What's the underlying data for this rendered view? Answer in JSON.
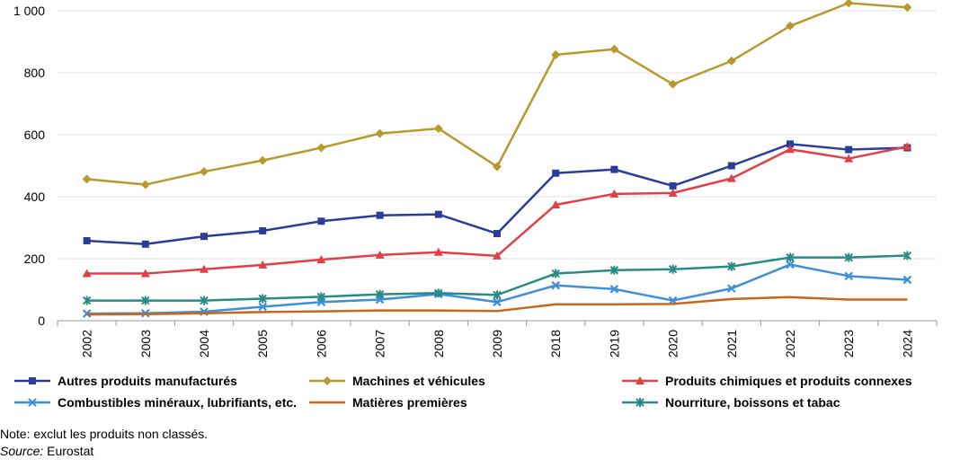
{
  "chart_data": {
    "type": "line",
    "categories": [
      "2002",
      "2003",
      "2004",
      "2005",
      "2006",
      "2007",
      "2008",
      "2009",
      "2018",
      "2019",
      "2020",
      "2021",
      "2022",
      "2023",
      "2024"
    ],
    "ylim": [
      0,
      1000
    ],
    "yticks": [
      0,
      200,
      400,
      600,
      800,
      1000
    ],
    "ytick_labels": [
      "0",
      "200",
      "400",
      "600",
      "800",
      "1 000"
    ],
    "grid": true,
    "legend_position": "bottom",
    "series": [
      {
        "name": "Autres produits manufacturés",
        "color": "#2B3D98",
        "marker": "square",
        "values": [
          258,
          247,
          272,
          290,
          321,
          340,
          343,
          281,
          476,
          488,
          435,
          500,
          570,
          552,
          558
        ]
      },
      {
        "name": "Machines et véhicules",
        "color": "#B8992B",
        "marker": "diamond",
        "values": [
          457,
          439,
          481,
          517,
          558,
          604,
          620,
          497,
          858,
          876,
          763,
          838,
          951,
          1025,
          1011
        ]
      },
      {
        "name": "Produits chimiques et produits connexes",
        "color": "#E04046",
        "marker": "triangle",
        "values": [
          152,
          152,
          166,
          180,
          197,
          212,
          221,
          209,
          374,
          409,
          412,
          459,
          553,
          523,
          562
        ]
      },
      {
        "name": "Combustibles minéraux, lubrifiants, etc.",
        "color": "#3D8FD8",
        "marker": "x",
        "values": [
          23,
          24,
          29,
          45,
          60,
          68,
          86,
          60,
          114,
          102,
          65,
          104,
          181,
          144,
          132
        ]
      },
      {
        "name": "Matières premières",
        "color": "#C8661A",
        "marker": "none",
        "values": [
          20,
          21,
          24,
          28,
          30,
          33,
          33,
          31,
          53,
          53,
          54,
          70,
          76,
          68,
          68
        ]
      },
      {
        "name": "Nourriture, boissons et tabac",
        "color": "#2A8A84",
        "marker": "star",
        "values": [
          65,
          65,
          65,
          71,
          77,
          85,
          89,
          83,
          152,
          163,
          166,
          175,
          204,
          204,
          210
        ]
      }
    ]
  },
  "notes": {
    "note": "Note: exclut les produits non classés.",
    "source_label": "Source:",
    "source_value": " Eurostat"
  }
}
